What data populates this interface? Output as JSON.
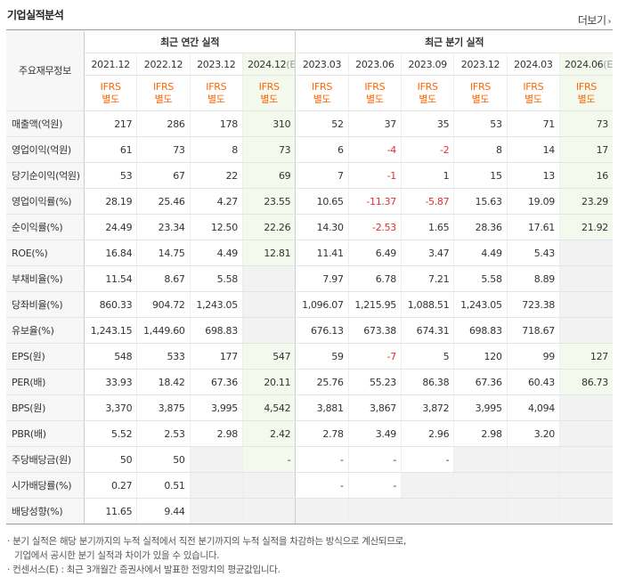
{
  "title": "기업실적분석",
  "more_label": "더보기",
  "corner_label": "주요재무정보",
  "groups": {
    "annual": "최근 연간 실적",
    "quarterly": "최근 분기 실적"
  },
  "periods": [
    {
      "label": "2021.12",
      "est": ""
    },
    {
      "label": "2022.12",
      "est": ""
    },
    {
      "label": "2023.12",
      "est": ""
    },
    {
      "label": "2024.12",
      "est": "(E)"
    },
    {
      "label": "2023.03",
      "est": ""
    },
    {
      "label": "2023.06",
      "est": ""
    },
    {
      "label": "2023.09",
      "est": ""
    },
    {
      "label": "2023.12",
      "est": ""
    },
    {
      "label": "2024.03",
      "est": ""
    },
    {
      "label": "2024.06",
      "est": "(E)"
    }
  ],
  "ifrs": {
    "line1": "IFRS",
    "line2": "별도"
  },
  "rows": [
    {
      "label": "매출액(억원)",
      "values": [
        "217",
        "286",
        "178",
        "310",
        "52",
        "37",
        "35",
        "53",
        "71",
        "73"
      ]
    },
    {
      "label": "영업이익(억원)",
      "values": [
        "61",
        "73",
        "8",
        "73",
        "6",
        "-4",
        "-2",
        "8",
        "14",
        "17"
      ]
    },
    {
      "label": "당기순이익(억원)",
      "values": [
        "53",
        "67",
        "22",
        "69",
        "7",
        "-1",
        "1",
        "15",
        "13",
        "16"
      ]
    },
    {
      "label": "영업이익률(%)",
      "values": [
        "28.19",
        "25.46",
        "4.27",
        "23.55",
        "10.65",
        "-11.37",
        "-5.87",
        "15.63",
        "19.09",
        "23.29"
      ]
    },
    {
      "label": "순이익률(%)",
      "values": [
        "24.49",
        "23.34",
        "12.50",
        "22.26",
        "14.30",
        "-2.53",
        "1.65",
        "28.36",
        "17.61",
        "21.92"
      ]
    },
    {
      "label": "ROE(%)",
      "values": [
        "16.84",
        "14.75",
        "4.49",
        "12.81",
        "11.41",
        "6.49",
        "3.47",
        "4.49",
        "5.43",
        ""
      ]
    },
    {
      "label": "부채비율(%)",
      "values": [
        "11.54",
        "8.67",
        "5.58",
        "",
        "7.97",
        "6.78",
        "7.21",
        "5.58",
        "8.89",
        ""
      ]
    },
    {
      "label": "당좌비율(%)",
      "values": [
        "860.33",
        "904.72",
        "1,243.05",
        "",
        "1,096.07",
        "1,215.95",
        "1,088.51",
        "1,243.05",
        "723.38",
        ""
      ]
    },
    {
      "label": "유보율(%)",
      "values": [
        "1,243.15",
        "1,449.60",
        "698.83",
        "",
        "676.13",
        "673.38",
        "674.31",
        "698.83",
        "718.67",
        ""
      ]
    },
    {
      "label": "EPS(원)",
      "values": [
        "548",
        "533",
        "177",
        "547",
        "59",
        "-7",
        "5",
        "120",
        "99",
        "127"
      ]
    },
    {
      "label": "PER(배)",
      "values": [
        "33.93",
        "18.42",
        "67.36",
        "20.11",
        "25.76",
        "55.23",
        "86.38",
        "67.36",
        "60.43",
        "86.73"
      ]
    },
    {
      "label": "BPS(원)",
      "values": [
        "3,370",
        "3,875",
        "3,995",
        "4,542",
        "3,881",
        "3,867",
        "3,872",
        "3,995",
        "4,094",
        ""
      ]
    },
    {
      "label": "PBR(배)",
      "values": [
        "5.52",
        "2.53",
        "2.98",
        "2.42",
        "2.78",
        "3.49",
        "2.96",
        "2.98",
        "3.20",
        ""
      ]
    },
    {
      "label": "주당배당금(원)",
      "values": [
        "50",
        "50",
        "",
        "-",
        "-",
        "-",
        "-",
        "",
        "",
        ""
      ]
    },
    {
      "label": "시가배당률(%)",
      "values": [
        "0.27",
        "0.51",
        "",
        "",
        "-",
        "-",
        "",
        "",
        "",
        ""
      ]
    },
    {
      "label": "배당성향(%)",
      "values": [
        "11.65",
        "9.44",
        "",
        "",
        "",
        "",
        "",
        "",
        "",
        ""
      ]
    }
  ],
  "notes": [
    "· 분기 실적은 해당 분기까지의 누적 실적에서 직전 분기까지의 누적 실적을 차감하는 방식으로 계산되므로,",
    "  기업에서 공시한 분기 실적과 차이가 있을 수 있습니다.",
    "· 컨센서스(E) : 최근 3개월간 증권사에서 발표한 전망치의 평균값입니다."
  ]
}
